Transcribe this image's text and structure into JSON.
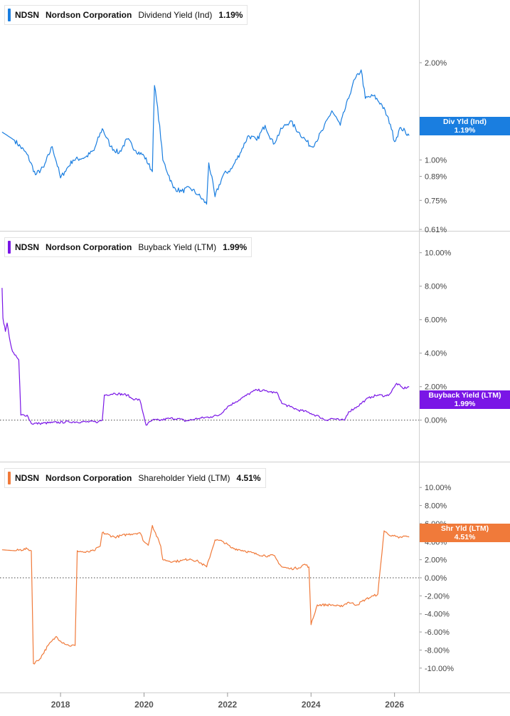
{
  "chart_data": [
    {
      "type": "line",
      "ticker": "NDSN",
      "company": "Nordson Corporation",
      "metric": "Dividend Yield (Ind)",
      "current_value": "1.19%",
      "flag_label": "Div Yld (Ind)",
      "color": "#1a7ee0",
      "y_scale": "log",
      "ylim": [
        0.61,
        2.45
      ],
      "y_ticks": [
        0.61,
        0.75,
        0.89,
        1.0,
        2.0
      ],
      "y_tick_labels": [
        "0.61%",
        "0.75%",
        "0.89%",
        "1.00%",
        "2.00%"
      ],
      "x": [
        2016.6,
        2016.9,
        2017.2,
        2017.4,
        2017.6,
        2017.8,
        2018.0,
        2018.1,
        2018.3,
        2018.6,
        2018.8,
        2019.0,
        2019.2,
        2019.4,
        2019.6,
        2019.8,
        2020.0,
        2020.2,
        2020.25,
        2020.45,
        2020.7,
        2020.9,
        2021.1,
        2021.3,
        2021.5,
        2021.55,
        2021.7,
        2021.9,
        2022.1,
        2022.3,
        2022.5,
        2022.7,
        2022.9,
        2023.1,
        2023.3,
        2023.5,
        2023.7,
        2023.9,
        2024.0,
        2024.1,
        2024.3,
        2024.5,
        2024.7,
        2024.9,
        2025.0,
        2025.2,
        2025.3,
        2025.5,
        2025.7,
        2025.9,
        2026.0,
        2026.15,
        2026.35
      ],
      "y": [
        1.22,
        1.15,
        1.04,
        0.9,
        0.95,
        1.1,
        0.88,
        0.92,
        1.0,
        1.02,
        1.07,
        1.25,
        1.1,
        1.05,
        1.16,
        1.07,
        1.03,
        0.92,
        1.7,
        1.0,
        0.82,
        0.8,
        0.82,
        0.78,
        0.73,
        0.98,
        0.77,
        0.9,
        0.94,
        1.05,
        1.19,
        1.15,
        1.28,
        1.12,
        1.25,
        1.32,
        1.22,
        1.14,
        1.1,
        1.13,
        1.25,
        1.42,
        1.28,
        1.55,
        1.72,
        1.9,
        1.55,
        1.58,
        1.48,
        1.29,
        1.14,
        1.26,
        1.19
      ],
      "last": 1.19
    },
    {
      "type": "line",
      "ticker": "NDSN",
      "company": "Nordson Corporation",
      "metric": "Buyback Yield (LTM)",
      "current_value": "1.99%",
      "flag_label": "Buyback Yield (LTM)",
      "color": "#7a16e6",
      "y_scale": "linear",
      "ylim": [
        -1.5,
        10.2
      ],
      "y_ticks": [
        0,
        2,
        4,
        6,
        8,
        10
      ],
      "y_tick_labels": [
        "0.00%",
        "2.00%",
        "4.00%",
        "6.00%",
        "8.00%",
        "10.00%"
      ],
      "baseline": 0,
      "x": [
        2016.6,
        2016.62,
        2016.68,
        2016.72,
        2016.8,
        2016.85,
        2016.9,
        2017.0,
        2017.05,
        2017.2,
        2017.3,
        2017.5,
        2017.8,
        2018.2,
        2018.6,
        2018.9,
        2019.0,
        2019.05,
        2019.3,
        2019.6,
        2019.7,
        2019.9,
        2020.0,
        2020.05,
        2020.2,
        2020.4,
        2020.6,
        2020.8,
        2021.0,
        2021.3,
        2021.6,
        2021.8,
        2022.0,
        2022.2,
        2022.4,
        2022.6,
        2022.7,
        2022.9,
        2023.0,
        2023.2,
        2023.3,
        2023.5,
        2023.7,
        2023.9,
        2024.0,
        2024.2,
        2024.35,
        2024.5,
        2024.7,
        2024.8,
        2024.9,
        2025.1,
        2025.3,
        2025.45,
        2025.6,
        2025.8,
        2025.9,
        2026.0,
        2026.05,
        2026.2,
        2026.35
      ],
      "y": [
        7.9,
        6.1,
        5.3,
        5.8,
        4.6,
        4.1,
        3.9,
        3.6,
        0.3,
        0.3,
        -0.2,
        -0.2,
        -0.15,
        -0.1,
        -0.1,
        -0.1,
        0.0,
        1.5,
        1.6,
        1.5,
        1.3,
        1.2,
        0.2,
        -0.3,
        0.0,
        0.0,
        0.1,
        0.1,
        -0.05,
        0.1,
        0.2,
        0.3,
        0.8,
        1.1,
        1.4,
        1.7,
        1.8,
        1.75,
        1.7,
        1.6,
        1.0,
        0.8,
        0.6,
        0.5,
        0.4,
        0.2,
        0.0,
        0.1,
        0.0,
        0.0,
        0.5,
        0.8,
        1.2,
        1.4,
        1.5,
        1.45,
        1.6,
        2.0,
        2.2,
        1.9,
        1.99
      ],
      "last": 1.99
    },
    {
      "type": "line",
      "ticker": "NDSN",
      "company": "Nordson Corporation",
      "metric": "Shareholder Yield (LTM)",
      "current_value": "4.51%",
      "flag_label": "Shr Yld (LTM)",
      "color": "#f07a3a",
      "y_scale": "linear",
      "ylim": [
        -11.2,
        11.2
      ],
      "y_ticks": [
        -10,
        -8,
        -6,
        -4,
        -2,
        0,
        2,
        4,
        6,
        8,
        10
      ],
      "y_tick_labels": [
        "-10.00%",
        "-8.00%",
        "-6.00%",
        "-4.00%",
        "-2.00%",
        "0.00%",
        "2.00%",
        "4.00%",
        "6.00%",
        "8.00%",
        "10.00%"
      ],
      "baseline": 0,
      "x": [
        2016.6,
        2016.9,
        2017.2,
        2017.3,
        2017.35,
        2017.5,
        2017.7,
        2017.9,
        2018.0,
        2018.2,
        2018.35,
        2018.4,
        2018.6,
        2018.8,
        2018.95,
        2019.0,
        2019.3,
        2019.6,
        2019.9,
        2020.0,
        2020.1,
        2020.2,
        2020.4,
        2020.45,
        2020.7,
        2020.9,
        2021.1,
        2021.3,
        2021.5,
        2021.7,
        2021.9,
        2022.1,
        2022.4,
        2022.7,
        2023.0,
        2023.1,
        2023.3,
        2023.5,
        2023.7,
        2023.85,
        2023.95,
        2024.0,
        2024.15,
        2024.5,
        2024.7,
        2024.9,
        2025.1,
        2025.3,
        2025.5,
        2025.6,
        2025.75,
        2025.85,
        2025.95,
        2026.1,
        2026.25,
        2026.35
      ],
      "y": [
        3.1,
        3.0,
        3.2,
        3.0,
        -9.5,
        -9.0,
        -7.5,
        -6.5,
        -7.0,
        -7.5,
        -7.5,
        3.0,
        2.8,
        3.0,
        3.5,
        5.0,
        4.5,
        4.8,
        5.0,
        4.0,
        3.6,
        5.8,
        3.5,
        2.0,
        1.8,
        1.9,
        2.1,
        1.8,
        1.2,
        4.2,
        4.0,
        3.3,
        3.0,
        2.6,
        2.4,
        2.5,
        1.2,
        1.0,
        1.1,
        1.5,
        1.2,
        -5.2,
        -3.0,
        -3.0,
        -3.2,
        -2.7,
        -3.0,
        -2.4,
        -2.0,
        -1.8,
        5.2,
        4.8,
        4.7,
        4.4,
        4.6,
        4.51
      ],
      "last": 4.51
    }
  ],
  "x_axis": {
    "range": [
      2016.55,
      2026.5
    ],
    "ticks": [
      2018,
      2020,
      2022,
      2024,
      2026
    ],
    "tick_labels": [
      "2018",
      "2020",
      "2022",
      "2024",
      "2026"
    ]
  },
  "colors": {
    "axis": "#cfcfcf",
    "tick_text": "#444444",
    "grid": "#cccccc"
  }
}
